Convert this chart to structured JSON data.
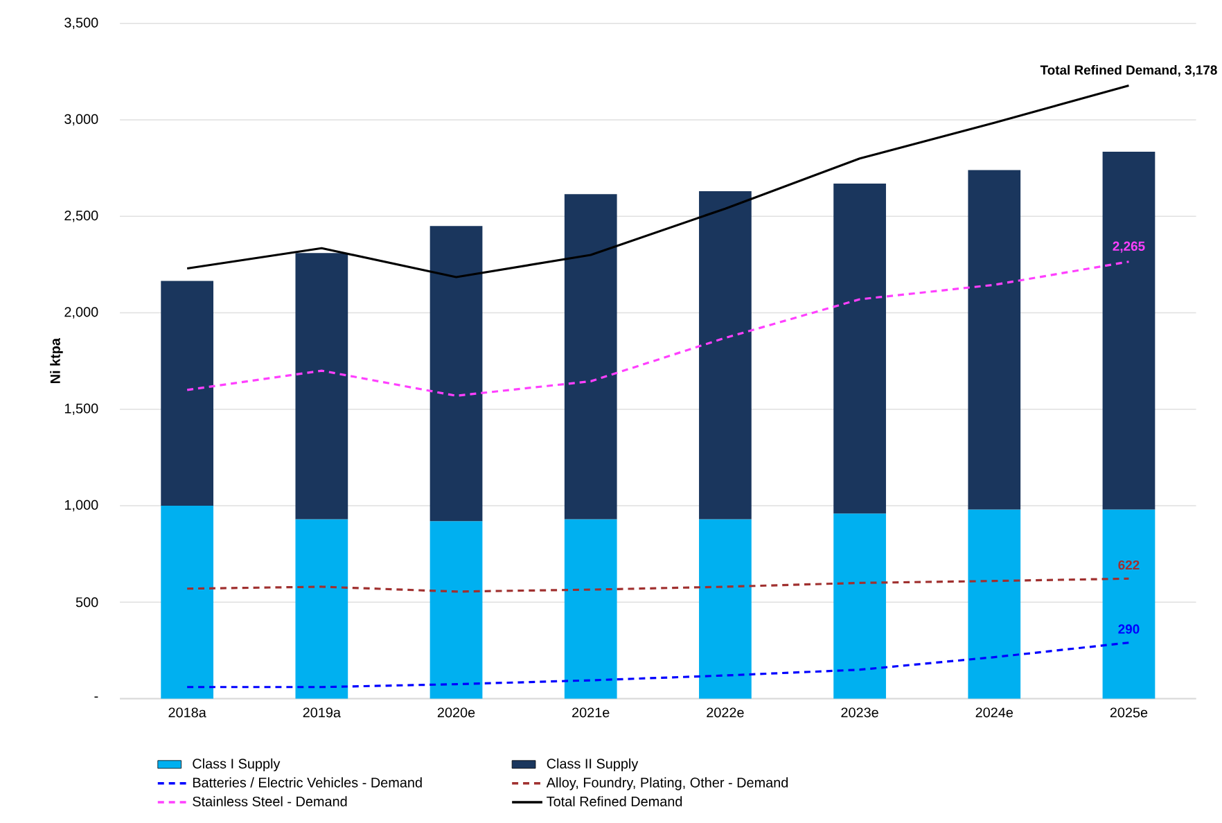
{
  "chart_data": {
    "type": "bar",
    "stacked": true,
    "ylabel": "Ni ktpa",
    "categories": [
      "2018a",
      "2019a",
      "2020e",
      "2021e",
      "2022e",
      "2023e",
      "2024e",
      "2025e"
    ],
    "series": [
      {
        "name": "Class I Supply",
        "color": "#00b0f0",
        "values": [
          1000,
          930,
          920,
          930,
          930,
          960,
          980,
          980
        ]
      },
      {
        "name": "Class II Supply",
        "color": "#1a365d",
        "values": [
          1165,
          1380,
          1530,
          1685,
          1700,
          1710,
          1760,
          1855
        ]
      },
      {
        "name": "Batteries / Electric Vehicles - Demand",
        "type": "line",
        "line_style": "dashed",
        "color": "#0000ff",
        "values": [
          60,
          60,
          75,
          95,
          120,
          150,
          215,
          290
        ],
        "value_labels": [
          null,
          null,
          null,
          null,
          null,
          null,
          null,
          "290"
        ]
      },
      {
        "name": "Alloy, Foundry, Plating, Other - Demand",
        "type": "line",
        "line_style": "dashed",
        "color": "#a0302f",
        "values": [
          570,
          580,
          555,
          565,
          580,
          600,
          610,
          622
        ],
        "value_labels": [
          null,
          null,
          null,
          null,
          null,
          null,
          null,
          "622"
        ]
      },
      {
        "name": "Stainless Steel - Demand",
        "type": "line",
        "line_style": "dashed",
        "color": "#ff40ff",
        "values": [
          1600,
          1700,
          1570,
          1645,
          1870,
          2070,
          2145,
          2265
        ],
        "value_labels": [
          null,
          null,
          null,
          null,
          null,
          null,
          null,
          "2,265"
        ]
      },
      {
        "name": "Total Refined Demand",
        "type": "line",
        "line_style": "solid",
        "color": "#000000",
        "values": [
          2230,
          2335,
          2185,
          2300,
          2540,
          2800,
          2985,
          3178
        ],
        "value_labels": [
          null,
          null,
          null,
          null,
          null,
          null,
          null,
          "Total Refined Demand,  3,178"
        ]
      }
    ],
    "ylim": [
      0,
      3500
    ],
    "yticks": [
      {
        "value": 0,
        "label": "-"
      },
      500,
      {
        "value": 1000,
        "label": "1,000"
      },
      {
        "value": 1500,
        "label": "1,500"
      },
      {
        "value": 2000,
        "label": "2,000"
      },
      {
        "value": 2500,
        "label": "2,500"
      },
      {
        "value": 3000,
        "label": "3,000"
      },
      {
        "value": 3500,
        "label": "3,500"
      }
    ],
    "grid": "y",
    "legend": "bottom",
    "marker": "none"
  }
}
